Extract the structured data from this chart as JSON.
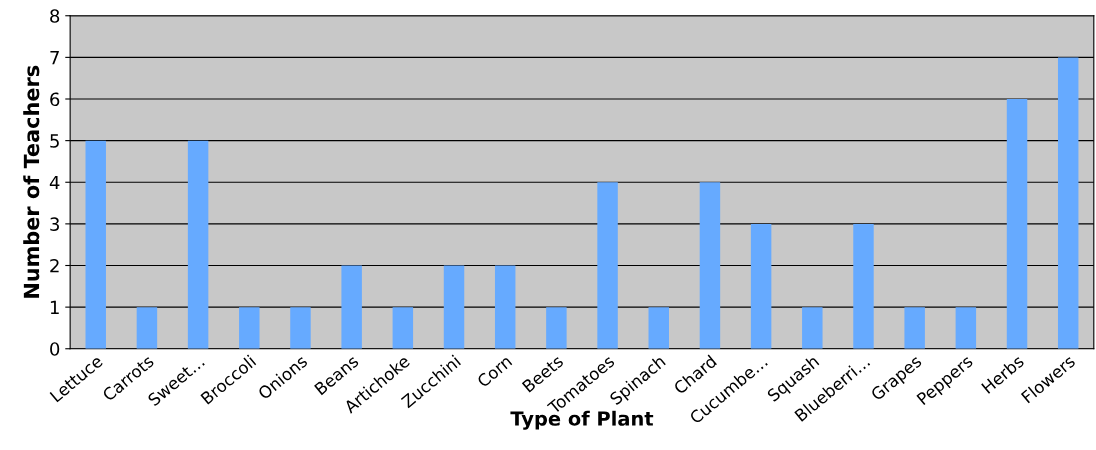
{
  "chart_data": {
    "type": "bar",
    "xlabel": "Type of Plant",
    "ylabel": "Number of Teachers",
    "categories": [
      "Lettuce",
      "Carrots",
      "Sweet…",
      "Broccoli",
      "Onions",
      "Beans",
      "Artichoke",
      "Zucchini",
      "Corn",
      "Beets",
      "Tomatoes",
      "Spinach",
      "Chard",
      "Cucumbe…",
      "Squash",
      "Blueberri…",
      "Grapes",
      "Peppers",
      "Herbs",
      "Flowers"
    ],
    "values": [
      5,
      1,
      5,
      1,
      1,
      2,
      1,
      2,
      2,
      1,
      4,
      1,
      4,
      3,
      1,
      3,
      1,
      1,
      6,
      7
    ],
    "color": "#66aaff",
    "ylim": [
      0,
      8
    ],
    "yticks": [
      0,
      1,
      2,
      3,
      4,
      5,
      6,
      7,
      8
    ],
    "grid": "y",
    "legend": false
  }
}
